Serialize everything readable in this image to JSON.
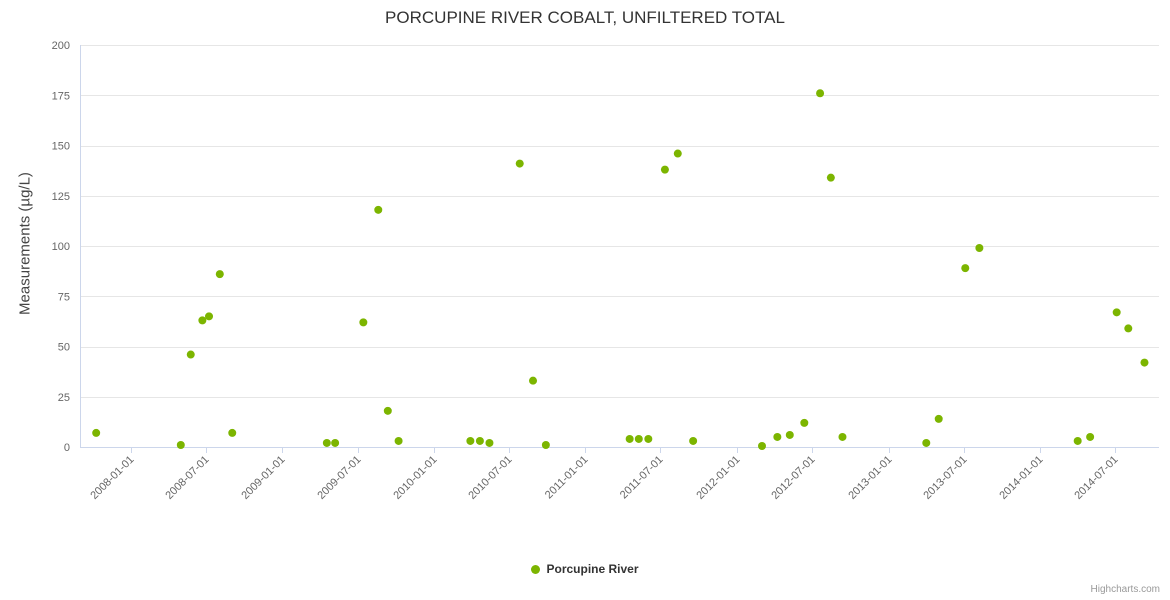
{
  "title": "PORCUPINE RIVER COBALT, UNFILTERED TOTAL",
  "legend": {
    "label": "Porcupine River"
  },
  "credits": "Highcharts.com",
  "colors": {
    "point": "#7cb500",
    "grid": "#e6e6e6",
    "axis_line": "#ccd6eb",
    "tick_label": "#666666",
    "title": "#333333"
  },
  "chart_data": {
    "type": "scatter",
    "title": "PORCUPINE RIVER COBALT, UNFILTERED TOTAL",
    "xlabel": "",
    "ylabel": "Measurements (µg/L)",
    "ylim": [
      0,
      200
    ],
    "yticks": [
      0,
      25,
      50,
      75,
      100,
      125,
      150,
      175,
      200
    ],
    "xticks": [
      "2008-01-01",
      "2008-07-01",
      "2009-01-01",
      "2009-07-01",
      "2010-01-01",
      "2010-07-01",
      "2011-01-01",
      "2011-07-01",
      "2012-01-01",
      "2012-07-01",
      "2013-01-01",
      "2013-07-01",
      "2014-01-01",
      "2014-07-01"
    ],
    "x_range": [
      "2007-09-01",
      "2014-10-15"
    ],
    "grid": true,
    "legend_position": "bottom",
    "series": [
      {
        "name": "Porcupine River",
        "color": "#7cb500",
        "points": [
          {
            "x": "2007-10-10",
            "y": 7
          },
          {
            "x": "2008-05-01",
            "y": 1
          },
          {
            "x": "2008-05-25",
            "y": 46
          },
          {
            "x": "2008-06-22",
            "y": 63
          },
          {
            "x": "2008-07-08",
            "y": 65
          },
          {
            "x": "2008-08-03",
            "y": 86
          },
          {
            "x": "2008-09-02",
            "y": 7
          },
          {
            "x": "2009-04-18",
            "y": 2
          },
          {
            "x": "2009-05-08",
            "y": 2
          },
          {
            "x": "2009-07-15",
            "y": 62
          },
          {
            "x": "2009-08-20",
            "y": 118
          },
          {
            "x": "2009-09-12",
            "y": 18
          },
          {
            "x": "2009-10-08",
            "y": 3
          },
          {
            "x": "2010-03-30",
            "y": 3
          },
          {
            "x": "2010-04-22",
            "y": 3
          },
          {
            "x": "2010-05-15",
            "y": 2
          },
          {
            "x": "2010-07-27",
            "y": 141
          },
          {
            "x": "2010-08-28",
            "y": 33
          },
          {
            "x": "2010-09-28",
            "y": 1
          },
          {
            "x": "2011-04-18",
            "y": 4
          },
          {
            "x": "2011-05-10",
            "y": 4
          },
          {
            "x": "2011-06-02",
            "y": 4
          },
          {
            "x": "2011-07-12",
            "y": 138
          },
          {
            "x": "2011-08-12",
            "y": 146
          },
          {
            "x": "2011-09-18",
            "y": 3
          },
          {
            "x": "2012-03-02",
            "y": 0.5
          },
          {
            "x": "2012-04-08",
            "y": 5
          },
          {
            "x": "2012-05-08",
            "y": 6
          },
          {
            "x": "2012-06-12",
            "y": 12
          },
          {
            "x": "2012-07-20",
            "y": 176
          },
          {
            "x": "2012-08-15",
            "y": 134
          },
          {
            "x": "2012-09-12",
            "y": 5
          },
          {
            "x": "2013-04-02",
            "y": 2
          },
          {
            "x": "2013-05-02",
            "y": 14
          },
          {
            "x": "2013-07-05",
            "y": 89
          },
          {
            "x": "2013-08-08",
            "y": 99
          },
          {
            "x": "2014-04-02",
            "y": 3
          },
          {
            "x": "2014-05-02",
            "y": 5
          },
          {
            "x": "2014-07-05",
            "y": 67
          },
          {
            "x": "2014-08-02",
            "y": 59
          },
          {
            "x": "2014-09-10",
            "y": 42
          }
        ]
      }
    ]
  }
}
